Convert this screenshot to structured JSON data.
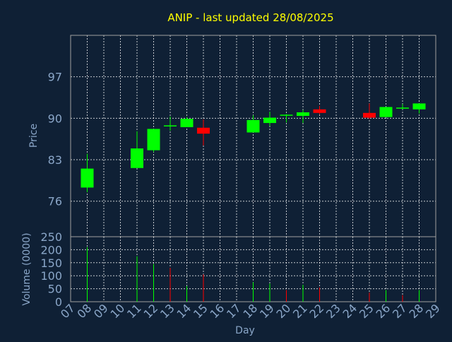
{
  "title": "ANIP - last updated 28/08/2025",
  "colors": {
    "background": "#0f2035",
    "plot_border": "#a0a0a0",
    "grid": "#ffffff",
    "axis_text": "#8aa6c8",
    "title_text": "#ffff00",
    "up": "#00ff00",
    "down": "#ff0000"
  },
  "chart_data": [
    {
      "type": "candlestick",
      "title": "ANIP - last updated 28/08/2025",
      "ylabel": "Price",
      "ylim": [
        70,
        104
      ],
      "yticks": [
        76,
        83,
        90,
        97
      ],
      "grid": true,
      "days": [
        "07",
        "08",
        "09",
        "10",
        "11",
        "12",
        "13",
        "14",
        "15",
        "16",
        "17",
        "18",
        "19",
        "20",
        "21",
        "22",
        "23",
        "24",
        "25",
        "26",
        "27",
        "28",
        "29"
      ],
      "candles": [
        {
          "day": "08",
          "open": 78.3,
          "close": 81.5,
          "high": 84.0,
          "low": 77.5
        },
        {
          "day": "11",
          "open": 81.6,
          "close": 84.9,
          "high": 87.8,
          "low": 81.6
        },
        {
          "day": "12",
          "open": 84.6,
          "close": 88.2,
          "high": 88.2,
          "low": 84.3
        },
        {
          "day": "13",
          "open": 88.8,
          "close": 88.8,
          "high": 90.3,
          "low": 87.9
        },
        {
          "day": "14",
          "open": 88.5,
          "close": 89.9,
          "high": 90.2,
          "low": 88.5
        },
        {
          "day": "15",
          "open": 88.4,
          "close": 87.4,
          "high": 89.8,
          "low": 85.4
        },
        {
          "day": "18",
          "open": 87.6,
          "close": 89.7,
          "high": 90.5,
          "low": 87.6
        },
        {
          "day": "19",
          "open": 89.2,
          "close": 90.1,
          "high": 91.1,
          "low": 88.7
        },
        {
          "day": "20",
          "open": 90.6,
          "close": 90.6,
          "high": 90.7,
          "low": 89.3
        },
        {
          "day": "21",
          "open": 90.4,
          "close": 91.0,
          "high": 91.4,
          "low": 89.2
        },
        {
          "day": "22",
          "open": 91.5,
          "close": 90.9,
          "high": 92.1,
          "low": 90.7
        },
        {
          "day": "25",
          "open": 90.9,
          "close": 90.1,
          "high": 92.5,
          "low": 89.9
        },
        {
          "day": "26",
          "open": 90.2,
          "close": 91.9,
          "high": 91.9,
          "low": 90.2
        },
        {
          "day": "27",
          "open": 91.8,
          "close": 91.8,
          "high": 92.4,
          "low": 91.5
        },
        {
          "day": "28",
          "open": 91.5,
          "close": 92.5,
          "high": 92.5,
          "low": 90.8
        }
      ]
    },
    {
      "type": "bar",
      "xlabel": "Day",
      "ylabel": "Volume (0000)",
      "ylim": [
        0,
        250
      ],
      "yticks": [
        0,
        50,
        100,
        150,
        200,
        250
      ],
      "grid": true,
      "days": [
        "07",
        "08",
        "09",
        "10",
        "11",
        "12",
        "13",
        "14",
        "15",
        "16",
        "17",
        "18",
        "19",
        "20",
        "21",
        "22",
        "23",
        "24",
        "25",
        "26",
        "27",
        "28",
        "29"
      ],
      "bars": [
        {
          "day": "08",
          "value": 210,
          "direction": "up"
        },
        {
          "day": "11",
          "value": 175,
          "direction": "up"
        },
        {
          "day": "12",
          "value": 145,
          "direction": "up"
        },
        {
          "day": "13",
          "value": 130,
          "direction": "down"
        },
        {
          "day": "14",
          "value": 60,
          "direction": "up"
        },
        {
          "day": "15",
          "value": 105,
          "direction": "down"
        },
        {
          "day": "18",
          "value": 75,
          "direction": "up"
        },
        {
          "day": "19",
          "value": 70,
          "direction": "up"
        },
        {
          "day": "20",
          "value": 45,
          "direction": "down"
        },
        {
          "day": "21",
          "value": 65,
          "direction": "up"
        },
        {
          "day": "22",
          "value": 55,
          "direction": "down"
        },
        {
          "day": "25",
          "value": 35,
          "direction": "down"
        },
        {
          "day": "26",
          "value": 45,
          "direction": "up"
        },
        {
          "day": "27",
          "value": 25,
          "direction": "down"
        },
        {
          "day": "28",
          "value": 45,
          "direction": "up"
        }
      ]
    }
  ]
}
